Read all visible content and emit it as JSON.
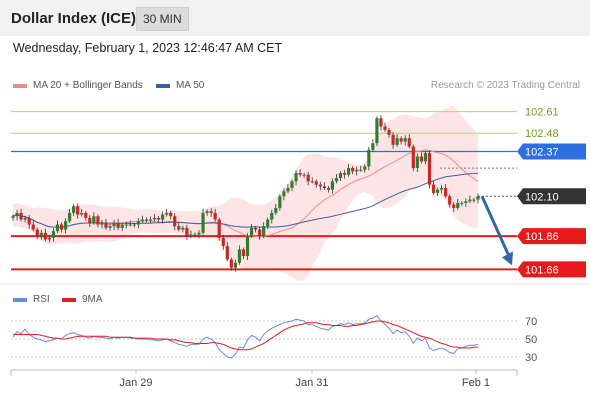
{
  "header": {
    "title": "Dollar Index (ICE)",
    "timeframe": "30 MIN"
  },
  "datetime": "Wednesday, February 1, 2023 12:46:47 AM CET",
  "legend": {
    "ma20": "MA 20 + Bollinger Bands",
    "ma50": "MA 50",
    "credit": "Research © 2023 Trading Central"
  },
  "rsi_legend": {
    "rsi": "RSI",
    "ma": "9MA"
  },
  "colors": {
    "up": "#2e7d32",
    "down": "#c62828",
    "ma20": "#f08a8a",
    "bollinger_fill": "#fde0e0",
    "ma50": "#3b5ea8",
    "resistance_green": "#b5cf7a",
    "resistance_green_label": "#6f9a1e",
    "pivot_blue": "#2b6fe0",
    "support_red": "#e51b1b",
    "current_price": "#333333",
    "arrow": "#3367a8",
    "rsi": "#6b8cd8",
    "rsi_ma": "#e02020"
  },
  "chart_data": [
    {
      "type": "candlestick",
      "title": "Dollar Index (ICE)",
      "ylim": [
        101.62,
        102.68
      ],
      "x_ticks": [
        "Jan 29",
        "Jan 31",
        "Feb 1"
      ],
      "levels": [
        {
          "label": "102.61",
          "value": 102.61,
          "kind": "resistance"
        },
        {
          "label": "102.48",
          "value": 102.48,
          "kind": "resistance"
        },
        {
          "label": "102.37",
          "value": 102.37,
          "kind": "pivot"
        },
        {
          "label": "102.10",
          "value": 102.1,
          "kind": "current"
        },
        {
          "label": "101.86",
          "value": 101.86,
          "kind": "support"
        },
        {
          "label": "101.66",
          "value": 101.66,
          "kind": "support"
        }
      ],
      "closes": [
        101.98,
        102.0,
        101.96,
        101.97,
        101.93,
        101.9,
        101.86,
        101.88,
        101.84,
        101.85,
        101.89,
        101.93,
        101.9,
        101.95,
        102.0,
        102.04,
        101.99,
        102.0,
        101.97,
        101.94,
        101.98,
        101.93,
        101.94,
        101.91,
        101.92,
        101.94,
        101.91,
        101.93,
        101.93,
        101.93,
        101.93,
        101.95,
        101.96,
        101.96,
        101.96,
        101.97,
        101.96,
        101.99,
        102.0,
        101.98,
        101.92,
        101.9,
        101.91,
        101.86,
        101.87,
        101.87,
        101.88,
        102.0,
        102.01,
        102.0,
        101.96,
        101.85,
        101.8,
        101.72,
        101.67,
        101.7,
        101.78,
        101.74,
        101.86,
        101.91,
        101.9,
        101.86,
        101.92,
        101.96,
        102.0,
        102.03,
        102.1,
        102.13,
        102.15,
        102.19,
        102.24,
        102.23,
        102.23,
        102.19,
        102.19,
        102.17,
        102.16,
        102.15,
        102.14,
        102.19,
        102.21,
        102.24,
        102.23,
        102.27,
        102.25,
        102.26,
        102.26,
        102.28,
        102.38,
        102.42,
        102.57,
        102.52,
        102.5,
        102.47,
        102.41,
        102.45,
        102.43,
        102.45,
        102.4,
        102.27,
        102.34,
        102.31,
        102.36,
        102.17,
        102.12,
        102.14,
        102.15,
        102.1,
        102.05,
        102.03,
        102.06,
        102.06,
        102.07,
        102.08,
        102.08,
        102.1
      ]
    },
    {
      "type": "line",
      "title": "RSI",
      "ylim": [
        20,
        80
      ],
      "y_ticks": [
        70,
        50,
        30
      ],
      "series": [
        {
          "name": "RSI",
          "values": [
            52,
            58,
            56,
            61,
            55,
            52,
            50,
            49,
            47,
            48,
            49,
            51,
            50,
            54,
            56,
            57,
            55,
            54,
            52,
            51,
            53,
            52,
            52,
            51,
            50,
            52,
            51,
            52,
            52,
            51,
            51,
            50,
            50,
            50,
            49,
            49,
            48,
            49,
            50,
            48,
            46,
            44,
            43,
            42,
            44,
            44,
            44,
            50,
            52,
            50,
            46,
            38,
            34,
            30,
            29,
            33,
            41,
            40,
            49,
            54,
            52,
            48,
            55,
            59,
            62,
            64,
            66,
            68,
            69,
            70,
            72,
            71,
            70,
            66,
            66,
            64,
            62,
            61,
            60,
            64,
            65,
            67,
            66,
            68,
            66,
            67,
            67,
            68,
            72,
            73,
            76,
            70,
            66,
            62,
            56,
            60,
            57,
            58,
            53,
            45,
            51,
            48,
            51,
            40,
            37,
            39,
            40,
            38,
            35,
            34,
            39,
            40,
            42,
            43,
            43,
            44
          ]
        },
        {
          "name": "9MA",
          "values": [
            55,
            55,
            55,
            55,
            55,
            55,
            55,
            54,
            53,
            52,
            51,
            51,
            50,
            50,
            51,
            52,
            53,
            53,
            53,
            53,
            53,
            53,
            53,
            53,
            52,
            52,
            52,
            52,
            52,
            52,
            51,
            51,
            51,
            51,
            51,
            50,
            50,
            50,
            50,
            49,
            49,
            48,
            47,
            46,
            46,
            45,
            45,
            45,
            45,
            46,
            46,
            45,
            44,
            42,
            40,
            39,
            38,
            38,
            38,
            39,
            41,
            43,
            45,
            48,
            51,
            54,
            57,
            60,
            62,
            64,
            65,
            66,
            67,
            68,
            68,
            68,
            67,
            66,
            66,
            65,
            65,
            65,
            64,
            64,
            65,
            65,
            66,
            67,
            68,
            69,
            70,
            70,
            69,
            68,
            66,
            65,
            63,
            61,
            59,
            57,
            55,
            53,
            52,
            51,
            49,
            47,
            45,
            44,
            42,
            41,
            41,
            40,
            40,
            40,
            41,
            41
          ]
        }
      ]
    }
  ]
}
